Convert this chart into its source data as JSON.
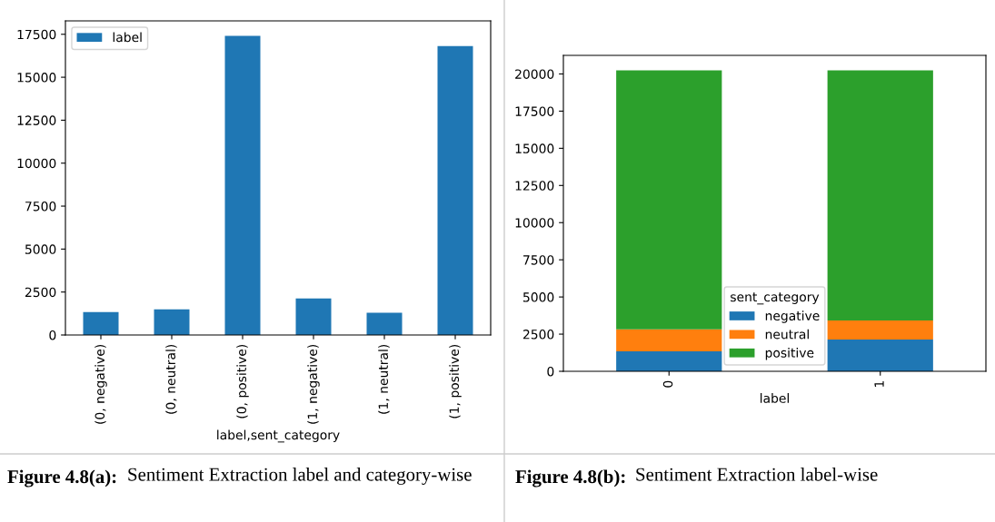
{
  "chart_data": [
    {
      "type": "bar",
      "categories": [
        "(0, negative)",
        "(0, neutral)",
        "(0, positive)",
        "(1, negative)",
        "(1, neutral)",
        "(1, positive)"
      ],
      "xlabel": "label,sent_category",
      "series": [
        {
          "name": "label",
          "color": "#1f77b4",
          "values": [
            1340,
            1490,
            17410,
            2130,
            1290,
            16820
          ]
        }
      ],
      "ylim": [
        0,
        18280
      ],
      "yticks": [
        0,
        2500,
        5000,
        7500,
        10000,
        12500,
        15000,
        17500
      ],
      "legend": "top left",
      "grid": false,
      "annotations": [
        "Figure 4.8(a):",
        "Sentiment Extraction label and category-wise"
      ]
    },
    {
      "type": "bar",
      "stacked": true,
      "categories": [
        "0",
        "1"
      ],
      "xlabel": "label",
      "legend_title": "sent_category",
      "series": [
        {
          "name": "negative",
          "color": "#1f77b4",
          "values": [
            1340,
            2130
          ]
        },
        {
          "name": "neutral",
          "color": "#ff7f0e",
          "values": [
            1490,
            1290
          ]
        },
        {
          "name": "positive",
          "color": "#2ca02c",
          "values": [
            17410,
            16820
          ]
        }
      ],
      "ylim": [
        0,
        21250
      ],
      "yticks": [
        0,
        2500,
        5000,
        7500,
        10000,
        12500,
        15000,
        17500,
        20000
      ],
      "legend": "bottom",
      "grid": false,
      "annotations": [
        "Figure 4.8(b):",
        "Sentiment Extraction label-wise"
      ]
    }
  ]
}
